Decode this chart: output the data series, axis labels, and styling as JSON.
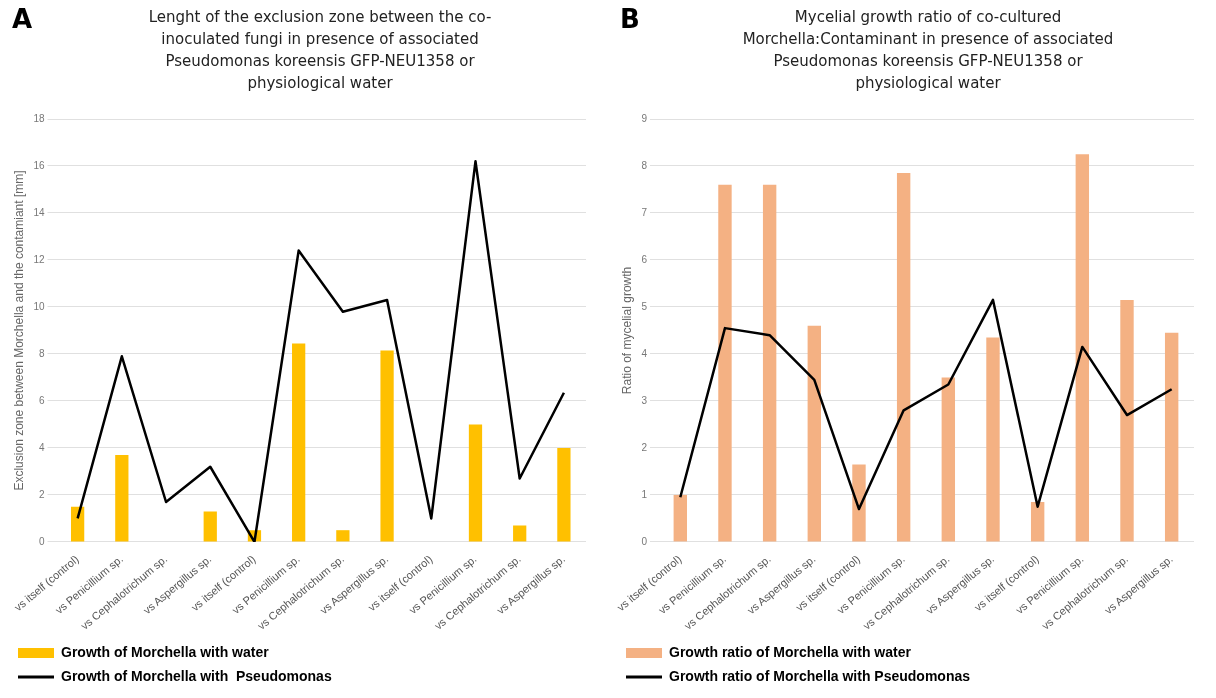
{
  "chart_data": [
    {
      "type": "bar",
      "title": "Lenght of the exclusion zone between the co-inoculated fungi in presence of associated Pseudomonas koreensis GFP-NEU1358 or physiological water",
      "ylabel": "Exclusion zone between Morchella and the contamiant [mm]",
      "annotations": [
        "A"
      ],
      "categories": [
        "vs itself (control)",
        "vs Penicillium sp.",
        "vs Cephalotrichum sp.",
        "vs Aspergillus sp.",
        "vs itself (control)",
        "vs Penicillium sp.",
        "vs Cephalotrichum sp.",
        "vs Aspergillus sp.",
        "vs itself (control)",
        "vs Penicillium sp.",
        "vs Cephalotrichum sp.",
        "vs Aspergillus sp."
      ],
      "series": [
        {
          "name": "Growth of Morchella with water",
          "color": "#ffc000",
          "values": [
            1.5,
            3.7,
            0,
            1.3,
            0.5,
            8.45,
            0.5,
            8.15,
            0,
            5.0,
            0.7,
            4.0
          ]
        },
        {
          "name": "Growth of Morchella with  Pseudomonas",
          "type": "line",
          "color": "#000000",
          "values": [
            1.0,
            7.9,
            1.7,
            3.2,
            0.0,
            12.4,
            9.8,
            10.3,
            1.0,
            16.2,
            2.7,
            6.35
          ]
        }
      ],
      "ylim": [
        0,
        18
      ],
      "yticks": [
        0,
        2,
        4,
        6,
        8,
        10,
        12,
        14,
        16,
        18
      ],
      "grid": "y",
      "legend": "bottom",
      "marker": "none"
    },
    {
      "type": "bar",
      "title": "Mycelial growth ratio of co-cultured Morchella:Contaminant in presence of associated Pseudomonas koreensis GFP-NEU1358 or physiological water",
      "ylabel": "Ratio of mycelial growth",
      "annotations": [
        "B"
      ],
      "categories": [
        "vs itself (control)",
        "vs Penicillium sp.",
        "vs Cephalotrichum sp.",
        "vs Aspergillus sp.",
        "vs itself (control)",
        "vs Penicillium sp.",
        "vs Cephalotrichum sp.",
        "vs Aspergillus sp.",
        "vs itself (control)",
        "vs Penicillium sp.",
        "vs Cephalotrichum sp.",
        "vs Aspergillus sp."
      ],
      "series": [
        {
          "name": "Growth ratio of Morchella with water",
          "color": "#f4b183",
          "values": [
            1.0,
            7.6,
            7.6,
            4.6,
            1.65,
            7.85,
            3.5,
            4.35,
            0.85,
            8.25,
            5.15,
            4.45
          ]
        },
        {
          "name": "Growth ratio of Morchella with Pseudomonas",
          "type": "line",
          "color": "#000000",
          "values": [
            0.95,
            4.55,
            4.4,
            3.45,
            0.7,
            2.8,
            3.35,
            5.15,
            0.75,
            4.15,
            2.7,
            3.25
          ]
        }
      ],
      "ylim": [
        0,
        9
      ],
      "yticks": [
        0,
        1,
        2,
        3,
        4,
        5,
        6,
        7,
        8,
        9
      ],
      "grid": "y",
      "legend": "bottom",
      "marker": "none"
    }
  ]
}
